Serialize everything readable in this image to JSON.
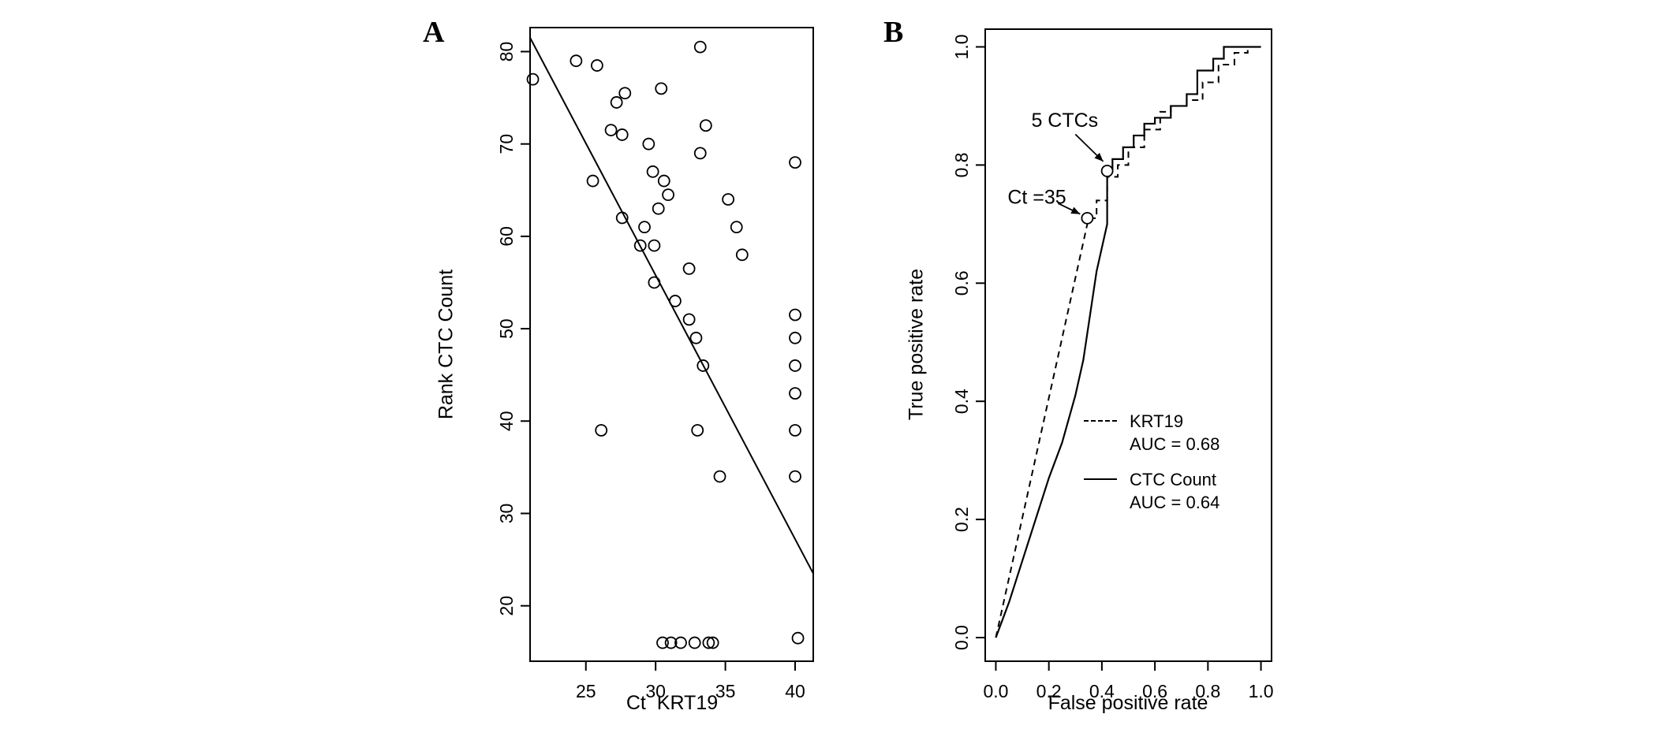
{
  "panels": {
    "a": {
      "letter": "A"
    },
    "b": {
      "letter": "B"
    }
  },
  "chart_data": [
    {
      "type": "scatter",
      "panel": "A",
      "xlabel": "Ct  KRT19",
      "ylabel": "Rank CTC Count",
      "xlim": [
        21.0,
        41.3
      ],
      "ylim": [
        14.0,
        82.6
      ],
      "xticks": [
        25,
        30,
        35,
        40
      ],
      "yticks": [
        20,
        30,
        40,
        50,
        60,
        70,
        80
      ],
      "xtick_labels": [
        "25",
        "30",
        "35",
        "40"
      ],
      "ytick_labels": [
        "20",
        "30",
        "40",
        "50",
        "60",
        "70",
        "80"
      ],
      "grid": false,
      "points": [
        [
          21.2,
          77
        ],
        [
          24.3,
          79
        ],
        [
          25.8,
          78.5
        ],
        [
          25.5,
          66
        ],
        [
          27.2,
          74.5
        ],
        [
          27.8,
          75.5
        ],
        [
          26.8,
          71.5
        ],
        [
          27.6,
          71
        ],
        [
          29.5,
          70
        ],
        [
          33.2,
          80.5
        ],
        [
          30.4,
          76
        ],
        [
          33.6,
          72
        ],
        [
          33.2,
          69
        ],
        [
          29.8,
          67
        ],
        [
          30.6,
          66
        ],
        [
          30.9,
          64.5
        ],
        [
          30.2,
          63
        ],
        [
          27.6,
          62
        ],
        [
          29.2,
          61
        ],
        [
          28.9,
          59
        ],
        [
          29.9,
          59
        ],
        [
          35.2,
          64
        ],
        [
          35.8,
          61
        ],
        [
          36.2,
          58
        ],
        [
          40,
          68
        ],
        [
          29.9,
          55
        ],
        [
          32.4,
          56.5
        ],
        [
          31.4,
          53
        ],
        [
          32.4,
          51
        ],
        [
          32.9,
          49
        ],
        [
          33.4,
          46
        ],
        [
          26.1,
          39
        ],
        [
          33,
          39
        ],
        [
          34.6,
          34
        ],
        [
          40,
          51.5
        ],
        [
          40,
          49
        ],
        [
          40,
          46
        ],
        [
          40,
          43
        ],
        [
          40,
          39
        ],
        [
          40,
          34
        ],
        [
          30.5,
          16
        ],
        [
          31.1,
          16
        ],
        [
          31.8,
          16
        ],
        [
          32.8,
          16
        ],
        [
          33.8,
          16
        ],
        [
          34.1,
          16
        ],
        [
          40.2,
          16.5
        ]
      ],
      "trend_line": {
        "x1": 21.0,
        "y1": 81.5,
        "x2": 41.3,
        "y2": 23.5
      }
    },
    {
      "type": "line",
      "panel": "B",
      "xlabel": "False positive rate",
      "ylabel": "True positive rate",
      "xlim": [
        -0.04,
        1.04
      ],
      "ylim": [
        -0.04,
        1.03
      ],
      "xticks": [
        0.0,
        0.2,
        0.4,
        0.6,
        0.8,
        1.0
      ],
      "yticks": [
        0.0,
        0.2,
        0.4,
        0.6,
        0.8,
        1.0
      ],
      "xtick_labels": [
        "0.0",
        "0.2",
        "0.4",
        "0.6",
        "0.8",
        "1.0"
      ],
      "ytick_labels": [
        "0.0",
        "0.2",
        "0.4",
        "0.6",
        "0.8",
        "1.0"
      ],
      "grid": false,
      "legend_position": "center-right",
      "series": [
        {
          "name": "KRT19",
          "auc_label": "AUC = 0.68",
          "style": "dashed",
          "points": [
            [
              0,
              0
            ],
            [
              0.35,
              0.71
            ],
            [
              0.38,
              0.71
            ],
            [
              0.38,
              0.74
            ],
            [
              0.42,
              0.74
            ],
            [
              0.42,
              0.78
            ],
            [
              0.46,
              0.78
            ],
            [
              0.46,
              0.8
            ],
            [
              0.5,
              0.8
            ],
            [
              0.5,
              0.83
            ],
            [
              0.56,
              0.83
            ],
            [
              0.56,
              0.86
            ],
            [
              0.62,
              0.86
            ],
            [
              0.62,
              0.89
            ],
            [
              0.66,
              0.89
            ],
            [
              0.66,
              0.9
            ],
            [
              0.72,
              0.9
            ],
            [
              0.72,
              0.91
            ],
            [
              0.78,
              0.91
            ],
            [
              0.78,
              0.94
            ],
            [
              0.84,
              0.94
            ],
            [
              0.84,
              0.97
            ],
            [
              0.9,
              0.97
            ],
            [
              0.9,
              0.99
            ],
            [
              0.95,
              0.99
            ],
            [
              0.95,
              1.0
            ],
            [
              1.0,
              1.0
            ]
          ]
        },
        {
          "name": "CTC Count",
          "auc_label": "AUC = 0.64",
          "style": "solid",
          "points": [
            [
              0,
              0
            ],
            [
              0.05,
              0.06
            ],
            [
              0.1,
              0.13
            ],
            [
              0.15,
              0.2
            ],
            [
              0.2,
              0.27
            ],
            [
              0.25,
              0.33
            ],
            [
              0.3,
              0.41
            ],
            [
              0.33,
              0.47
            ],
            [
              0.36,
              0.56
            ],
            [
              0.38,
              0.62
            ],
            [
              0.4,
              0.66
            ],
            [
              0.42,
              0.7
            ],
            [
              0.42,
              0.79
            ],
            [
              0.44,
              0.79
            ],
            [
              0.44,
              0.81
            ],
            [
              0.48,
              0.81
            ],
            [
              0.48,
              0.83
            ],
            [
              0.52,
              0.83
            ],
            [
              0.52,
              0.85
            ],
            [
              0.56,
              0.85
            ],
            [
              0.56,
              0.87
            ],
            [
              0.6,
              0.87
            ],
            [
              0.6,
              0.88
            ],
            [
              0.66,
              0.88
            ],
            [
              0.66,
              0.9
            ],
            [
              0.72,
              0.9
            ],
            [
              0.72,
              0.92
            ],
            [
              0.76,
              0.92
            ],
            [
              0.76,
              0.96
            ],
            [
              0.82,
              0.96
            ],
            [
              0.82,
              0.98
            ],
            [
              0.86,
              0.98
            ],
            [
              0.86,
              1.0
            ],
            [
              1.0,
              1.0
            ]
          ]
        }
      ],
      "annotations": [
        {
          "label": "5 CTCs",
          "text_x": 0.26,
          "text_y": 0.875,
          "point_x": 0.42,
          "point_y": 0.79,
          "arrow": {
            "x1": 0.3,
            "y1": 0.852,
            "x2": 0.405,
            "y2": 0.806
          }
        },
        {
          "label": "Ct =35",
          "text_x": 0.155,
          "text_y": 0.745,
          "point_x": 0.345,
          "point_y": 0.71,
          "arrow": {
            "x1": 0.235,
            "y1": 0.735,
            "x2": 0.318,
            "y2": 0.717
          }
        }
      ]
    }
  ]
}
